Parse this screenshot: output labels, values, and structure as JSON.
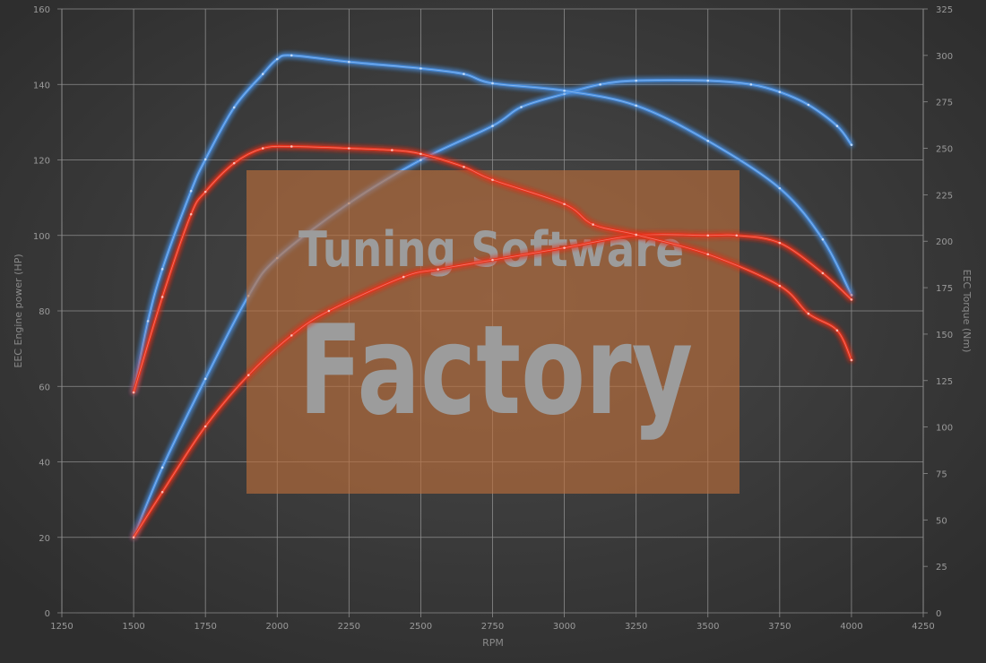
{
  "chart_data": {
    "type": "line",
    "xlabel": "RPM",
    "ylabel_left": "EEC Engine power (HP)",
    "ylabel_right": "EEC Torque (Nm)",
    "xlim": [
      1250,
      4250
    ],
    "ylim_left": [
      0,
      160
    ],
    "ylim_right": [
      0,
      325
    ],
    "x_ticks": [
      1250,
      1500,
      1750,
      2000,
      2250,
      2500,
      2750,
      3000,
      3250,
      3500,
      3750,
      4000,
      4250
    ],
    "y_left_ticks": [
      0,
      20,
      40,
      60,
      80,
      100,
      120,
      140,
      160
    ],
    "y_right_ticks": [
      0,
      25,
      50,
      75,
      100,
      125,
      150,
      175,
      200,
      225,
      250,
      275,
      300,
      325
    ],
    "grid": true,
    "legend": "none",
    "colors": {
      "tuned": "#4a90e2",
      "stock": "#e8321e",
      "background": "#3d3d3d",
      "grid": "#8c8c8c"
    },
    "series": [
      {
        "axis": "left",
        "color": "#4a90e2",
        "x": [
          1500,
          1600,
          1750,
          1900,
          2000,
          2250,
          2500,
          2750,
          2850,
          3000,
          3125,
          3250,
          3500,
          3650,
          3750,
          3850,
          3950,
          4000
        ],
        "y": [
          20,
          38.5,
          62,
          84,
          94,
          108.5,
          120,
          129,
          134,
          137.5,
          140,
          141,
          141,
          140,
          138,
          134.6,
          129,
          124
        ]
      },
      {
        "axis": "right",
        "color": "#4a90e2",
        "x": [
          1500,
          1550,
          1600,
          1700,
          1750,
          1850,
          1950,
          2000,
          2050,
          2250,
          2500,
          2650,
          2750,
          3000,
          3250,
          3500,
          3750,
          3900,
          4000
        ],
        "y": [
          118.6,
          157,
          185,
          227,
          244,
          272,
          290,
          298,
          300,
          296.5,
          293,
          290,
          285,
          281,
          273,
          254,
          228.5,
          201,
          171
        ]
      },
      {
        "axis": "left",
        "color": "#e8321e",
        "x": [
          1500,
          1600,
          1750,
          1900,
          2050,
          2180,
          2440,
          2560,
          2750,
          3000,
          3250,
          3500,
          3600,
          3750,
          3900,
          4000
        ],
        "y": [
          20,
          32,
          49.4,
          63,
          73.5,
          80,
          89,
          91,
          93.5,
          96.7,
          100,
          100,
          100,
          98,
          90,
          83
        ]
      },
      {
        "axis": "right",
        "color": "#e8321e",
        "x": [
          1500,
          1600,
          1700,
          1750,
          1850,
          1950,
          2050,
          2250,
          2400,
          2500,
          2650,
          2750,
          3000,
          3100,
          3250,
          3500,
          3750,
          3850,
          3950,
          4000
        ],
        "y": [
          118.6,
          170,
          214.5,
          226.6,
          242,
          250,
          251,
          250,
          249,
          247,
          240,
          233,
          220,
          209,
          203.5,
          193,
          176,
          161,
          152,
          136
        ]
      }
    ]
  },
  "watermark": {
    "line1": "Tuning Software",
    "line2": "Factory",
    "color": "#c0703a"
  }
}
